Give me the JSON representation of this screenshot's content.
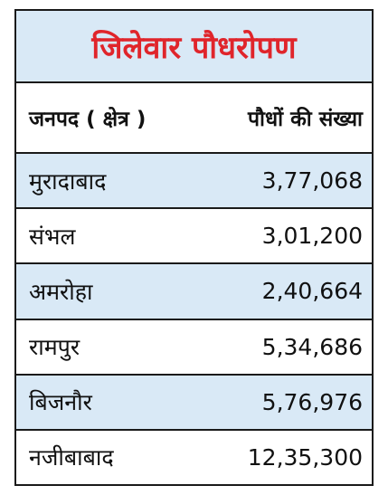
{
  "colors": {
    "title": "#e0252b",
    "shade": "#d9e9f6",
    "border": "#1a1a1a"
  },
  "table": {
    "title": "जिलेवार पौधरोपण",
    "headers": [
      "जनपद ( क्षेत्र )",
      "पौधों की संख्या"
    ],
    "rows": [
      {
        "district": "मुरादाबाद",
        "count": "3,77,068"
      },
      {
        "district": "संभल",
        "count": "3,01,200"
      },
      {
        "district": "अमरोहा",
        "count": "2,40,664"
      },
      {
        "district": "रामपुर",
        "count": "5,34,686"
      },
      {
        "district": "बिजनौर",
        "count": "5,76,976"
      },
      {
        "district": "नजीबाबाद",
        "count": "12,35,300"
      }
    ]
  }
}
